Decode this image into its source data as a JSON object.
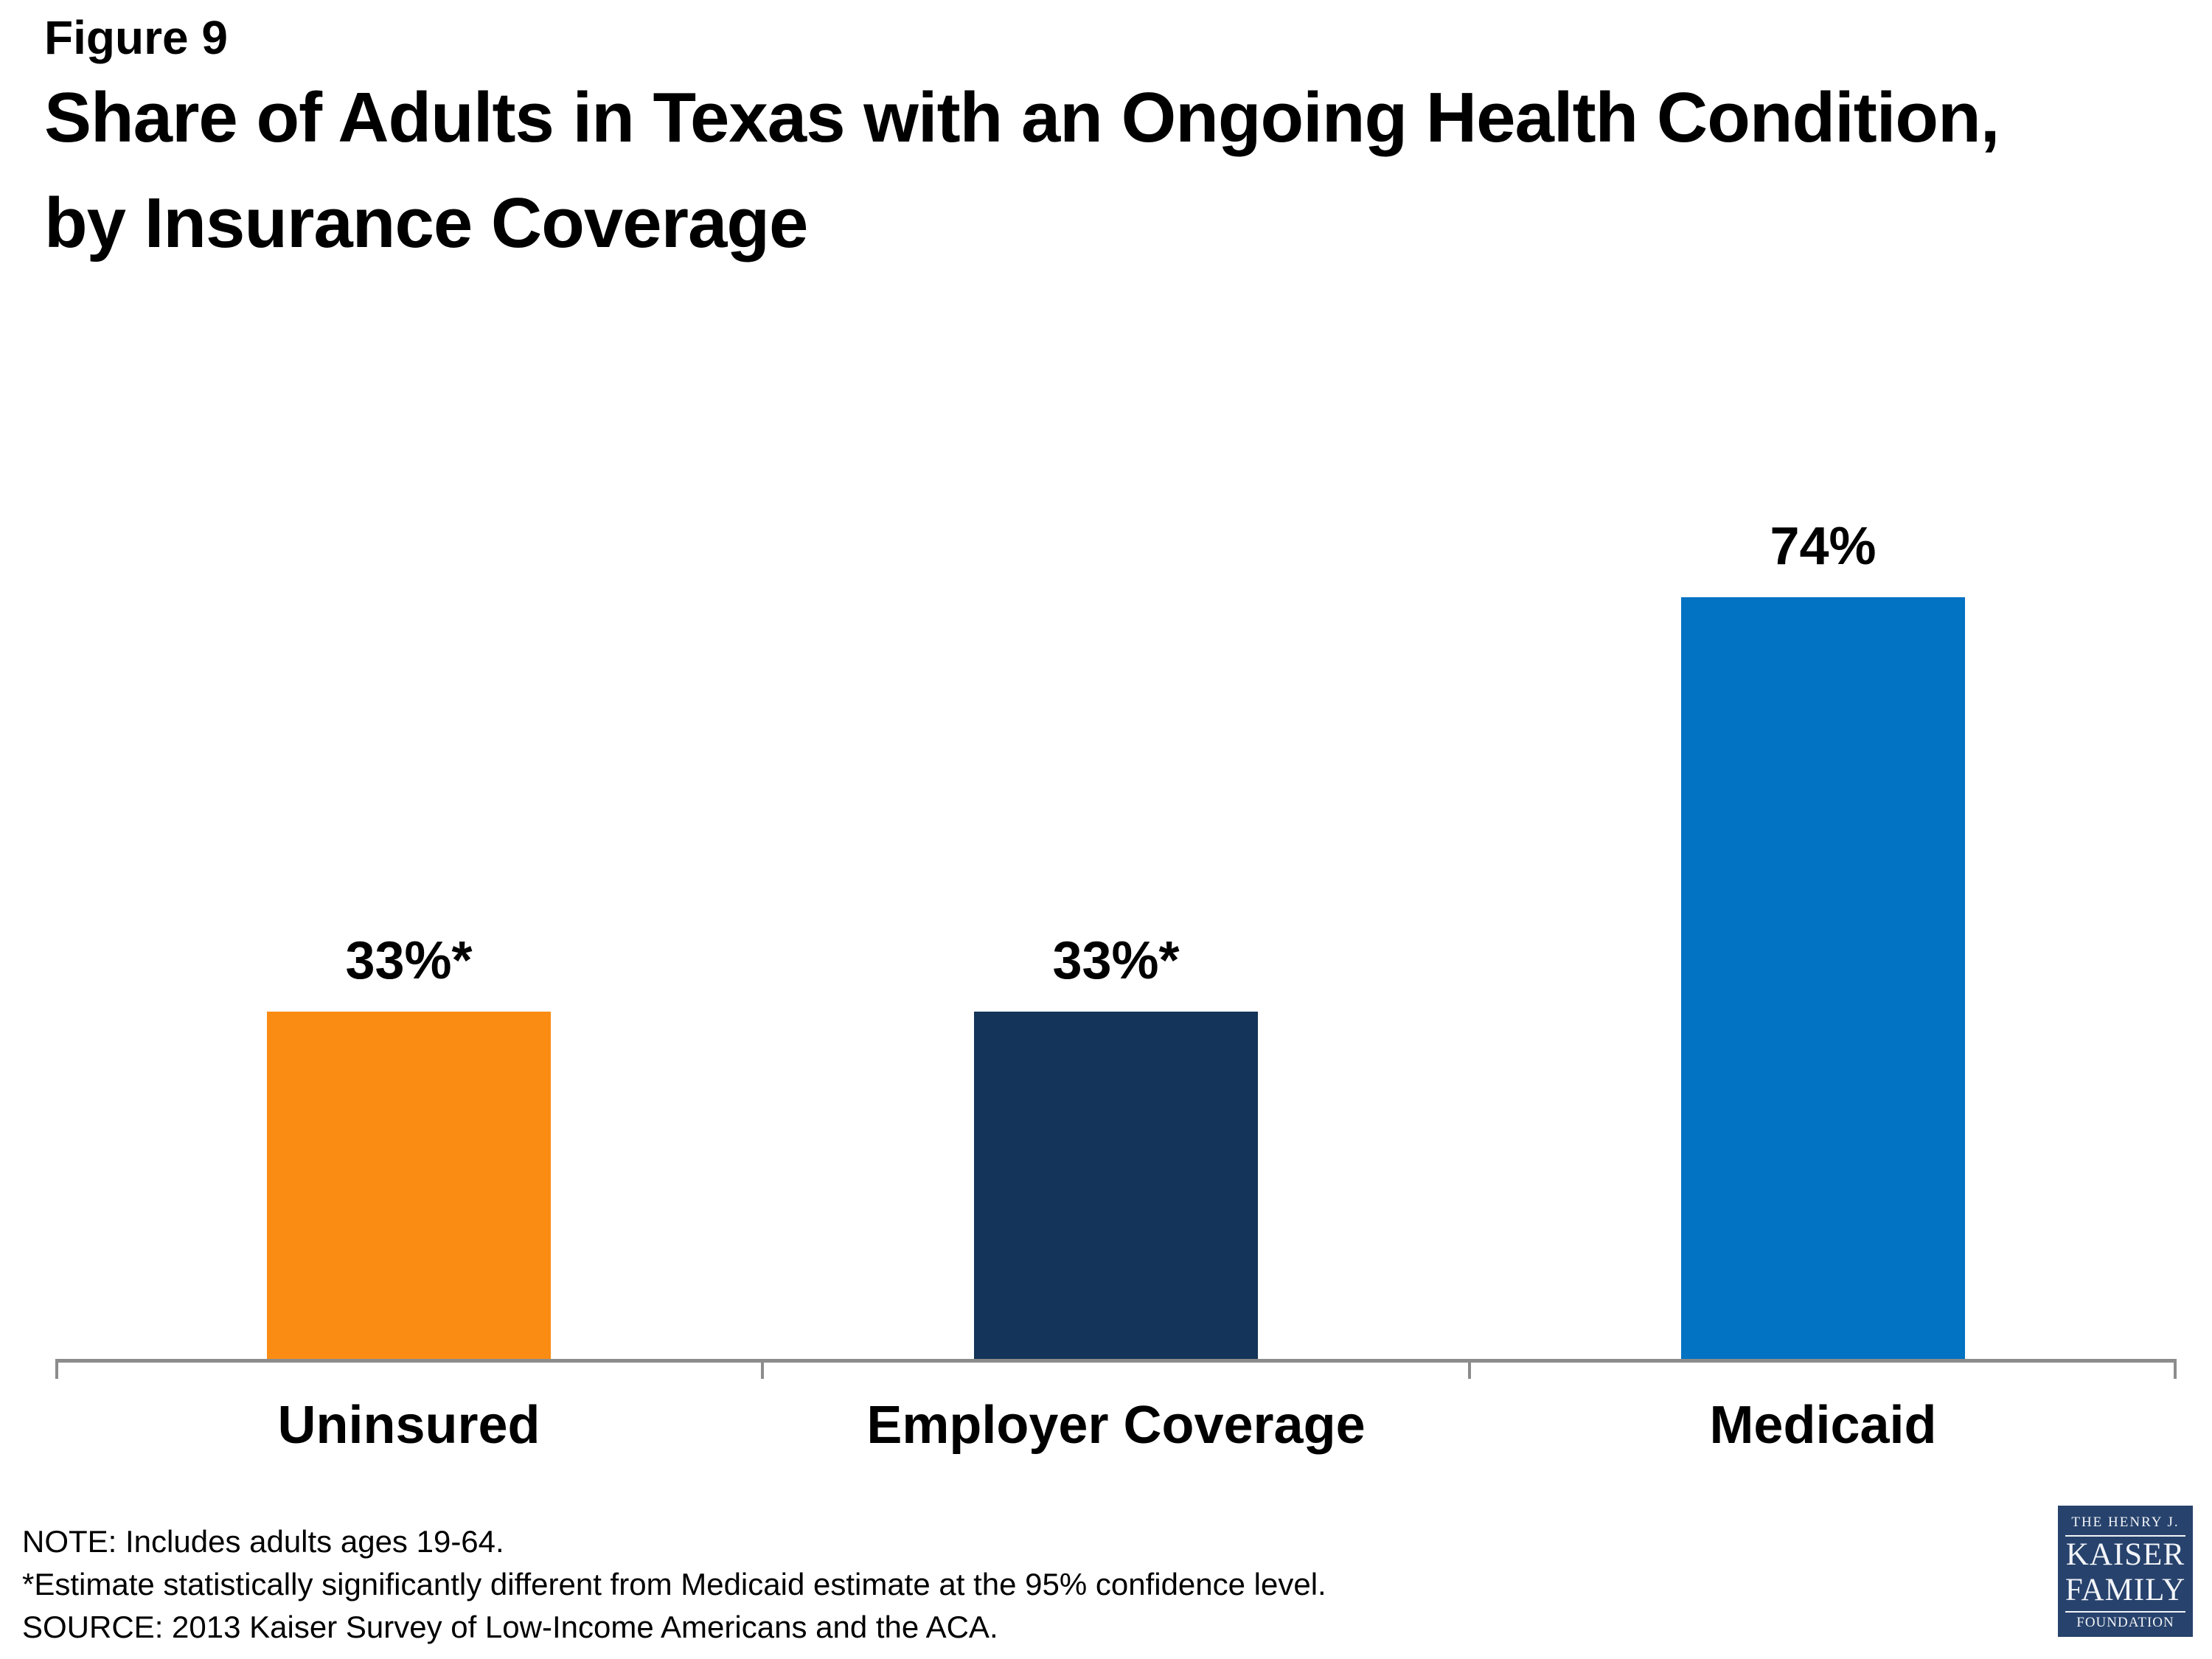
{
  "figure_label": "Figure 9",
  "title": {
    "line1": "Share of Adults in Texas with an Ongoing Health Condition,",
    "line2": "by Insurance Coverage"
  },
  "chart_data": {
    "type": "bar",
    "title": "Share of Adults in Texas with an Ongoing Health Condition, by Insurance Coverage",
    "categories": [
      "Uninsured",
      "Employer Coverage",
      "Medicaid"
    ],
    "values": [
      33,
      33,
      74
    ],
    "data_labels": [
      "33%*",
      "33%*",
      "74%"
    ],
    "bar_colors": [
      "#FA8C14",
      "#143459",
      "#0272C3"
    ],
    "xlabel": "",
    "ylabel": "",
    "ylim": [
      0,
      80
    ],
    "grid": false,
    "legend": false,
    "y_axis_visible": false,
    "axis_color": "#8C8C8C"
  },
  "notes": {
    "note": "NOTE: Includes adults ages 19-64.",
    "asterisk": "*Estimate statistically significantly different from Medicaid estimate at the 95% confidence level.",
    "source": "SOURCE: 2013 Kaiser Survey of Low-Income Americans and the ACA."
  },
  "logo": {
    "line1": "THE HENRY J.",
    "line2": "KAISER",
    "line3": "FAMILY",
    "line4": "FOUNDATION",
    "bg_color": "#27426C"
  }
}
